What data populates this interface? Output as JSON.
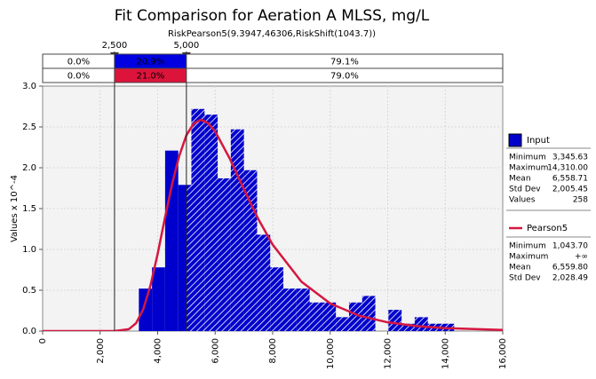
{
  "chart_data": {
    "type": "histogram",
    "title": "Fit Comparison for Aeration A MLSS, mg/L",
    "subtitle": "RiskPearson5(9.3947,46306,RiskShift(1043.7))",
    "y_label": "Values x 10^-4",
    "name": "Input",
    "color": "#0000cc",
    "bins": [
      3346,
      3803,
      4259,
      4716,
      5173,
      5630,
      6087,
      6544,
      7000,
      7457,
      7914,
      8371,
      8828,
      9285,
      9742,
      10198,
      10655,
      11112,
      11569,
      12026,
      12483,
      12939,
      13396,
      13853,
      14310
    ],
    "values": [
      0.52,
      0.78,
      2.21,
      1.79,
      2.72,
      2.65,
      1.87,
      2.47,
      1.97,
      1.18,
      0.78,
      0.52,
      0.52,
      0.35,
      0.35,
      0.17,
      0.35,
      0.43,
      0,
      0.26,
      0.09,
      0.17,
      0.09,
      0.09
    ],
    "xlim": [
      0,
      16000
    ],
    "xticks": [
      0,
      {
        "value": 2000,
        "label": "2,000"
      },
      {
        "value": 4000,
        "label": "4,000"
      },
      {
        "value": 6000,
        "label": "6,000"
      },
      {
        "value": 8000,
        "label": "8,000"
      },
      {
        "value": 10000,
        "label": "10,000"
      },
      {
        "value": 12000,
        "label": "12,000"
      },
      {
        "value": 14000,
        "label": "14,000"
      },
      {
        "value": 16000,
        "label": "16,000"
      }
    ],
    "ylim": [
      0,
      3
    ],
    "yticks": [
      {
        "value": 0,
        "label": "0.0"
      },
      {
        "value": 0.5,
        "label": "0.5"
      },
      {
        "value": 1,
        "label": "1.0"
      },
      {
        "value": 1.5,
        "label": "1.5"
      },
      {
        "value": 2,
        "label": "2.0"
      },
      {
        "value": 2.5,
        "label": "2.5"
      },
      {
        "value": 3,
        "label": "3.0"
      }
    ],
    "grid": true,
    "stats": [
      [
        "Minimum",
        "3,345.63"
      ],
      [
        "Maximum",
        "14,310.00"
      ],
      [
        "Mean",
        "6,558.71"
      ],
      [
        "Std Dev",
        "2,005.45"
      ],
      [
        "Values",
        "258"
      ]
    ],
    "fit": {
      "type": "line",
      "name": "Pearson5",
      "color": "#d5173f",
      "x": [
        0,
        1043.7,
        2000,
        2500,
        3000,
        3250,
        3500,
        3750,
        4000,
        4250,
        4500,
        4750,
        5000,
        5250,
        5500,
        5750,
        6000,
        6500,
        7000,
        7500,
        8000,
        9000,
        10000,
        11000,
        12000,
        13000,
        14000,
        16000
      ],
      "values": [
        0,
        0,
        0,
        0.00015,
        0.0231,
        0.0964,
        0.268,
        0.558,
        0.946,
        1.38,
        1.797,
        2.145,
        2.399,
        2.54,
        2.588,
        2.547,
        2.445,
        2.117,
        1.737,
        1.372,
        1.058,
        0.605,
        0.338,
        0.189,
        0.107,
        0.0614,
        0.0359,
        0.013
      ],
      "stats": [
        [
          "Minimum",
          "1,043.70"
        ],
        [
          "Maximum",
          "+∞"
        ],
        [
          "Mean",
          "6,559.80"
        ],
        [
          "Std Dev",
          "2,028.49"
        ]
      ]
    },
    "delimiters": [
      {
        "value": 2500,
        "label": "2,500"
      },
      {
        "value": 5000,
        "label": "5,000"
      }
    ],
    "probability_rows": [
      {
        "color": "#0000e0",
        "cells": [
          "0.0%",
          "20.9%",
          "79.1%"
        ]
      },
      {
        "color": "#dc143c",
        "cells": [
          "0.0%",
          "21.0%",
          "79.0%"
        ]
      }
    ]
  }
}
